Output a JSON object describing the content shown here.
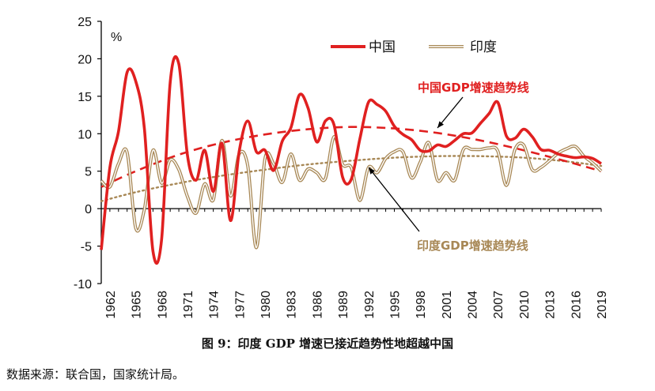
{
  "chart_data": {
    "type": "line",
    "title": "",
    "ylabel": "%",
    "xlabel": "",
    "ylim": [
      -10,
      25
    ],
    "yticks": [
      -10,
      -5,
      0,
      5,
      10,
      15,
      20,
      25
    ],
    "xlim": [
      1961,
      2019
    ],
    "xticks": [
      1962,
      1965,
      1968,
      1971,
      1974,
      1977,
      1980,
      1983,
      1986,
      1989,
      1992,
      1995,
      1998,
      2001,
      2004,
      2007,
      2010,
      2013,
      2016,
      2019
    ],
    "legend_position": "top-right",
    "series": [
      {
        "name": "中国",
        "color": "#e02020",
        "x": [
          1961,
          1962,
          1963,
          1964,
          1965,
          1966,
          1967,
          1968,
          1969,
          1970,
          1971,
          1972,
          1973,
          1974,
          1975,
          1976,
          1977,
          1978,
          1979,
          1980,
          1981,
          1982,
          1983,
          1984,
          1985,
          1986,
          1987,
          1988,
          1989,
          1990,
          1991,
          1992,
          1993,
          1994,
          1995,
          1996,
          1997,
          1998,
          1999,
          2000,
          2001,
          2002,
          2003,
          2004,
          2005,
          2006,
          2007,
          2008,
          2009,
          2010,
          2011,
          2012,
          2013,
          2014,
          2015,
          2016,
          2017,
          2018,
          2019
        ],
        "values": [
          -5.5,
          5.5,
          10.3,
          18.2,
          17.0,
          10.7,
          -5.7,
          -4.1,
          16.9,
          19.3,
          7.1,
          3.8,
          7.8,
          2.3,
          8.7,
          -1.6,
          7.6,
          11.7,
          7.6,
          7.8,
          5.1,
          9.0,
          10.8,
          15.2,
          13.4,
          8.9,
          11.7,
          11.2,
          4.2,
          3.9,
          9.3,
          14.2,
          13.9,
          13.0,
          11.0,
          9.9,
          9.2,
          7.8,
          7.7,
          8.5,
          8.3,
          9.1,
          10.0,
          10.1,
          11.4,
          12.7,
          14.2,
          9.7,
          9.4,
          10.6,
          9.6,
          7.9,
          7.8,
          7.3,
          7.0,
          6.8,
          6.9,
          6.7,
          6.0
        ]
      },
      {
        "name": "印度",
        "color": "#a88856",
        "x": [
          1961,
          1962,
          1963,
          1964,
          1965,
          1966,
          1967,
          1968,
          1969,
          1970,
          1971,
          1972,
          1973,
          1974,
          1975,
          1976,
          1977,
          1978,
          1979,
          1980,
          1981,
          1982,
          1983,
          1984,
          1985,
          1986,
          1987,
          1988,
          1989,
          1990,
          1991,
          1992,
          1993,
          1994,
          1995,
          1996,
          1997,
          1998,
          1999,
          2000,
          2001,
          2002,
          2003,
          2004,
          2005,
          2006,
          2007,
          2008,
          2009,
          2010,
          2011,
          2012,
          2013,
          2014,
          2015,
          2016,
          2017,
          2018,
          2019
        ],
        "values": [
          3.7,
          2.9,
          6.0,
          7.5,
          -2.6,
          -0.1,
          7.8,
          3.4,
          6.5,
          5.2,
          1.6,
          -0.6,
          3.3,
          1.2,
          9.1,
          1.7,
          7.3,
          5.7,
          -5.2,
          6.7,
          6.0,
          3.5,
          7.3,
          3.8,
          5.3,
          4.8,
          4.0,
          9.6,
          5.9,
          5.5,
          1.1,
          5.5,
          4.8,
          6.7,
          7.6,
          7.6,
          4.1,
          6.2,
          8.8,
          3.8,
          4.8,
          3.8,
          7.9,
          7.9,
          7.9,
          8.1,
          7.7,
          3.1,
          7.9,
          8.5,
          5.2,
          5.5,
          6.4,
          7.4,
          8.0,
          8.3,
          7.0,
          6.1,
          5.0
        ]
      },
      {
        "name": "中国GDP增速趋势线",
        "color": "#e02020",
        "style": "dashed",
        "x": [
          1961,
          1965,
          1970,
          1975,
          1980,
          1985,
          1990,
          1995,
          2000,
          2005,
          2010,
          2015,
          2019
        ],
        "values": [
          2.9,
          5.0,
          7.2,
          8.8,
          9.9,
          10.6,
          10.9,
          10.7,
          10.1,
          9.1,
          7.8,
          6.3,
          5.0
        ]
      },
      {
        "name": "印度GDP增速趋势线",
        "color": "#a88856",
        "style": "dotted",
        "x": [
          1961,
          1965,
          1970,
          1975,
          1980,
          1985,
          1990,
          1995,
          2000,
          2005,
          2010,
          2015,
          2019
        ],
        "values": [
          1.0,
          2.2,
          3.4,
          4.4,
          5.2,
          5.9,
          6.4,
          6.8,
          7.0,
          7.0,
          6.8,
          6.3,
          5.7
        ]
      }
    ],
    "annotations": [
      {
        "text": "中国GDP增速趋势线",
        "color": "#e02020"
      },
      {
        "text": "印度GDP增速趋势线",
        "color": "#a88856"
      }
    ]
  },
  "caption": "图 9：印度 GDP 增速已接近趋势性地超越中国",
  "source": "数据来源：联合国，国家统计局。"
}
